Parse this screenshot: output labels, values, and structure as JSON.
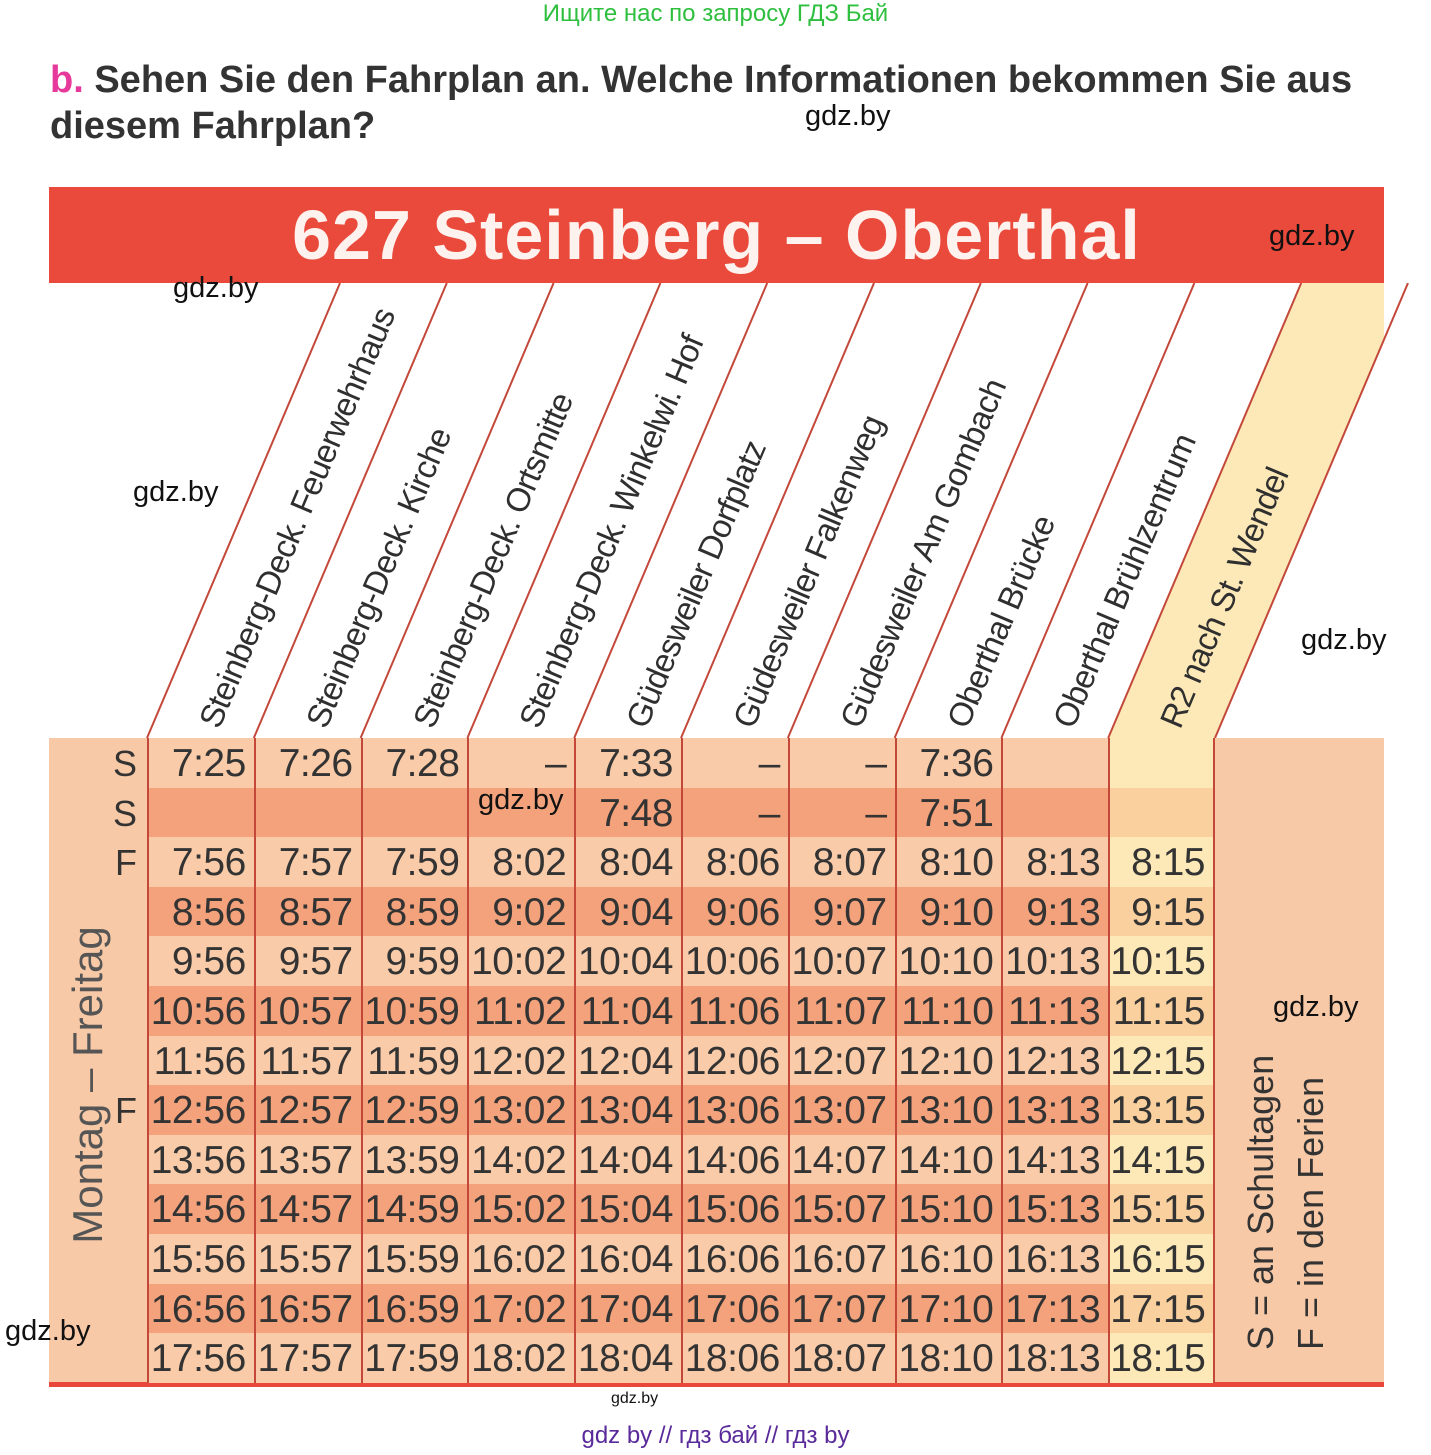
{
  "top_note": "Ищите нас по запросу ГДЗ Бай",
  "task": {
    "letter": "b.",
    "text": " Sehen Sie den Fahrplan an. Welche Informationen bekommen Sie aus diesem Fahrplan?"
  },
  "timetable": {
    "title": "627 Steinberg – Oberthal",
    "stations": [
      "Steinberg-Deck. Feuerwehrhaus",
      "Steinberg-Deck. Kirche",
      "Steinberg-Deck. Ortsmitte",
      "Steinberg-Deck. Winkelwi. Hof",
      "Güdesweiler Dorfplatz",
      "Güdesweiler Falkenweg",
      "Güdesweiler Am Gombach",
      "Oberthal Brücke",
      "Oberthal Brühlzentrum",
      "R2 nach St. Wendel"
    ],
    "day_label": "Montag – Freitag",
    "rows": [
      {
        "mark": "S",
        "times": [
          "7:25",
          "7:26",
          "7:28",
          "–",
          "7:33",
          "–",
          "–",
          "7:36",
          "",
          ""
        ]
      },
      {
        "mark": "S",
        "times": [
          "",
          "",
          "",
          "",
          "7:48",
          "–",
          "–",
          "7:51",
          "",
          ""
        ]
      },
      {
        "mark": "F",
        "times": [
          "7:56",
          "7:57",
          "7:59",
          "8:02",
          "8:04",
          "8:06",
          "8:07",
          "8:10",
          "8:13",
          "8:15"
        ]
      },
      {
        "mark": "",
        "times": [
          "8:56",
          "8:57",
          "8:59",
          "9:02",
          "9:04",
          "9:06",
          "9:07",
          "9:10",
          "9:13",
          "9:15"
        ]
      },
      {
        "mark": "",
        "times": [
          "9:56",
          "9:57",
          "9:59",
          "10:02",
          "10:04",
          "10:06",
          "10:07",
          "10:10",
          "10:13",
          "10:15"
        ]
      },
      {
        "mark": "",
        "times": [
          "10:56",
          "10:57",
          "10:59",
          "11:02",
          "11:04",
          "11:06",
          "11:07",
          "11:10",
          "11:13",
          "11:15"
        ]
      },
      {
        "mark": "",
        "times": [
          "11:56",
          "11:57",
          "11:59",
          "12:02",
          "12:04",
          "12:06",
          "12:07",
          "12:10",
          "12:13",
          "12:15"
        ]
      },
      {
        "mark": "F",
        "times": [
          "12:56",
          "12:57",
          "12:59",
          "13:02",
          "13:04",
          "13:06",
          "13:07",
          "13:10",
          "13:13",
          "13:15"
        ]
      },
      {
        "mark": "",
        "times": [
          "13:56",
          "13:57",
          "13:59",
          "14:02",
          "14:04",
          "14:06",
          "14:07",
          "14:10",
          "14:13",
          "14:15"
        ]
      },
      {
        "mark": "",
        "times": [
          "14:56",
          "14:57",
          "14:59",
          "15:02",
          "15:04",
          "15:06",
          "15:07",
          "15:10",
          "15:13",
          "15:15"
        ]
      },
      {
        "mark": "",
        "times": [
          "15:56",
          "15:57",
          "15:59",
          "16:02",
          "16:04",
          "16:06",
          "16:07",
          "16:10",
          "16:13",
          "16:15"
        ]
      },
      {
        "mark": "",
        "times": [
          "16:56",
          "16:57",
          "16:59",
          "17:02",
          "17:04",
          "17:06",
          "17:07",
          "17:10",
          "17:13",
          "17:15"
        ]
      },
      {
        "mark": "",
        "times": [
          "17:56",
          "17:57",
          "17:59",
          "18:02",
          "18:04",
          "18:06",
          "18:07",
          "18:10",
          "18:13",
          "18:15"
        ]
      }
    ],
    "legend": {
      "s": "S = an Schultagen",
      "f": "F = in den Ferien"
    },
    "colors": {
      "title_bar": "#ea4a3b",
      "row_light": "#f9cba8",
      "row_dark": "#f3a27c",
      "r2_light": "#fde9b8",
      "r2_dark": "#f9d09e",
      "grid": "#c4483a"
    }
  },
  "watermarks": [
    "gdz.by",
    "gdz.by",
    "gdz.by",
    "gdz.by",
    "gdz.by",
    "gdz.by",
    "gdz.by",
    "gdz.by",
    "gdz.by"
  ],
  "footer": "gdz by  //  гдз бай  //  гдз by"
}
